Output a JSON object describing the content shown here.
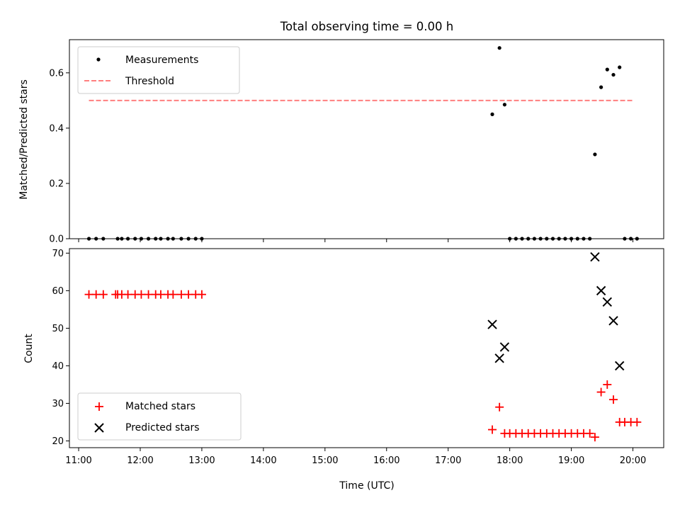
{
  "chart_data": [
    {
      "type": "scatter",
      "title": "Total observing time = 0.00 h",
      "ylabel": "Matched/Predicted stars",
      "xlim": [
        "10:51",
        "20:30"
      ],
      "ylim": [
        0,
        0.72
      ],
      "yticks": [
        "0.0",
        "0.2",
        "0.4",
        "0.6"
      ],
      "legend": "top-left",
      "series": [
        {
          "name": "Measurements",
          "color": "#000000",
          "marker": "dot",
          "x": [
            "11:10",
            "11:17",
            "11:24",
            "11:38",
            "11:42",
            "11:48",
            "11:55",
            "12:01",
            "12:08",
            "12:15",
            "12:20",
            "12:27",
            "12:32",
            "12:40",
            "12:47",
            "12:54",
            "13:00",
            "17:43",
            "17:50",
            "17:55",
            "18:00",
            "18:06",
            "18:12",
            "18:18",
            "18:24",
            "18:30",
            "18:36",
            "18:42",
            "18:48",
            "18:54",
            "19:00",
            "19:06",
            "19:12",
            "19:18",
            "19:23",
            "19:29",
            "19:35",
            "19:41",
            "19:47",
            "19:52",
            "19:58",
            "20:04"
          ],
          "y": [
            0,
            0,
            0,
            0,
            0,
            0,
            0,
            0,
            0,
            0,
            0,
            0,
            0,
            0,
            0,
            0,
            0,
            0.45,
            0.69,
            0.485,
            0,
            0,
            0,
            0,
            0,
            0,
            0,
            0,
            0,
            0,
            0,
            0,
            0,
            0,
            0.305,
            0.548,
            0.612,
            0.593,
            0.62,
            0,
            0,
            0
          ]
        },
        {
          "name": "Threshold",
          "color": "#ff7f7f",
          "style": "dashed",
          "x": [
            "11:10",
            "20:00"
          ],
          "y": [
            0.5,
            0.5
          ]
        }
      ]
    },
    {
      "type": "scatter",
      "xlabel": "Time (UTC)",
      "ylabel": "Count",
      "xlim": [
        "10:51",
        "20:30"
      ],
      "ylim": [
        18.2,
        71.2
      ],
      "xticks": [
        "11:00",
        "12:00",
        "13:00",
        "14:00",
        "15:00",
        "16:00",
        "17:00",
        "18:00",
        "19:00",
        "20:00"
      ],
      "yticks": [
        "20",
        "30",
        "40",
        "50",
        "60",
        "70"
      ],
      "legend": "bottom-left",
      "series": [
        {
          "name": "Matched stars",
          "color": "#ff0000",
          "marker": "plus",
          "x": [
            "11:10",
            "11:17",
            "11:24",
            "11:36",
            "11:38",
            "11:42",
            "11:48",
            "11:55",
            "12:01",
            "12:08",
            "12:15",
            "12:20",
            "12:27",
            "12:32",
            "12:40",
            "12:47",
            "12:54",
            "13:00",
            "17:43",
            "17:50",
            "17:55",
            "18:00",
            "18:06",
            "18:12",
            "18:18",
            "18:24",
            "18:30",
            "18:36",
            "18:42",
            "18:48",
            "18:54",
            "19:00",
            "19:06",
            "19:12",
            "19:18",
            "19:23",
            "19:29",
            "19:35",
            "19:41",
            "19:47",
            "19:52",
            "19:58",
            "20:04"
          ],
          "y": [
            59,
            59,
            59,
            59,
            59,
            59,
            59,
            59,
            59,
            59,
            59,
            59,
            59,
            59,
            59,
            59,
            59,
            59,
            23,
            29,
            22,
            22,
            22,
            22,
            22,
            22,
            22,
            22,
            22,
            22,
            22,
            22,
            22,
            22,
            22,
            21,
            33,
            35,
            31,
            25,
            25,
            25,
            25
          ]
        },
        {
          "name": "Predicted stars",
          "color": "#000000",
          "marker": "x",
          "x": [
            "17:43",
            "17:50",
            "17:55",
            "19:23",
            "19:29",
            "19:35",
            "19:41",
            "19:47"
          ],
          "y": [
            51,
            42,
            45,
            69,
            60,
            57,
            52,
            40
          ]
        }
      ]
    }
  ]
}
